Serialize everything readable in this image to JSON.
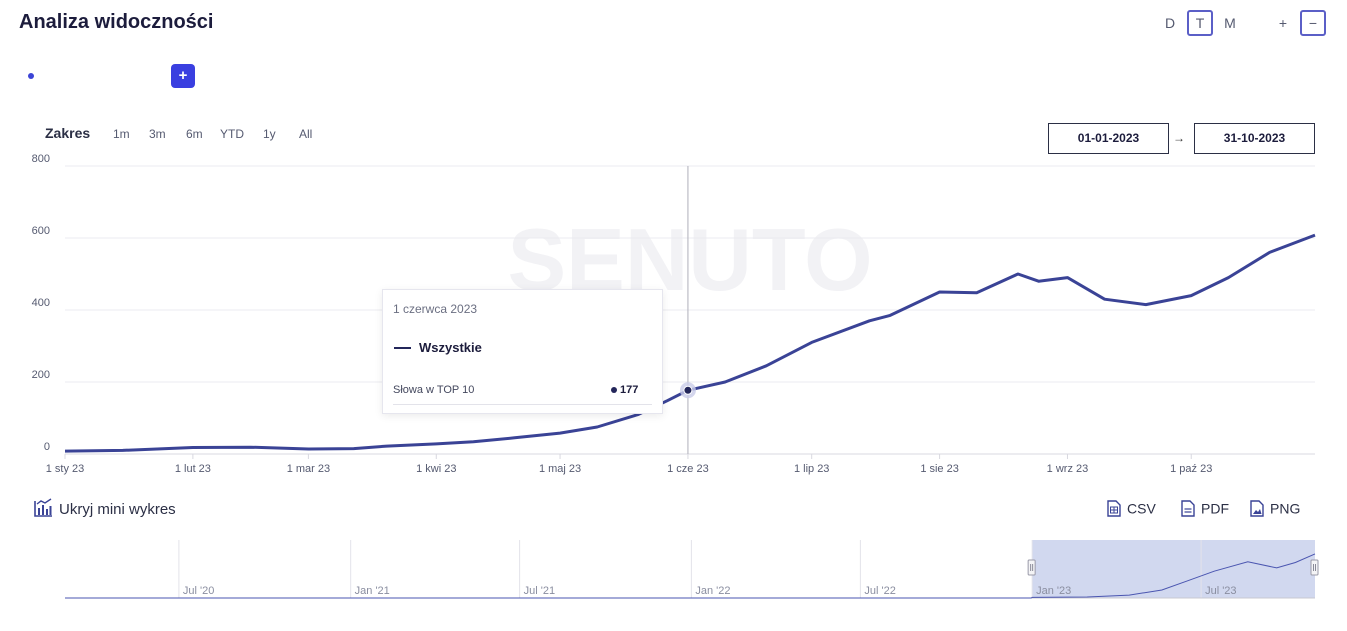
{
  "header": {
    "title": "Analiza widoczności"
  },
  "granularity": {
    "options": [
      "D",
      "T",
      "M"
    ],
    "active": "T",
    "zoom_in": "+",
    "zoom_out": "−"
  },
  "series_controls": {
    "add_label": "+"
  },
  "range": {
    "label": "Zakres",
    "options": [
      "1m",
      "3m",
      "6m",
      "YTD",
      "1y",
      "All"
    ],
    "from": "01-01-2023",
    "arrow": "→",
    "to": "31-10-2023"
  },
  "watermark": "SENUTO",
  "tooltip": {
    "date": "1 czerwca 2023",
    "series_name": "Wszystkie",
    "metric_label": "Słowa w TOP 10",
    "metric_value": "177"
  },
  "mini_chart_toggle": "Ukryj mini wykres",
  "exports": [
    "CSV",
    "PDF",
    "PNG"
  ],
  "colors": {
    "line": "#3a4396",
    "accent": "#3a3fe0",
    "navigator_fill": "#c9d1ec"
  },
  "chart_data": {
    "type": "line",
    "ylim": [
      0,
      800
    ],
    "yticks": [
      0,
      200,
      400,
      600,
      800
    ],
    "x_start": "2023-01-01",
    "x_end": "2023-10-31",
    "xtick_labels": [
      "1 sty 23",
      "1 lut 23",
      "1 mar 23",
      "1 kwi 23",
      "1 maj 23",
      "1 cze 23",
      "1 lip 23",
      "1 sie 23",
      "1 wrz 23",
      "1 paź 23"
    ],
    "xtick_dates": [
      "2023-01-01",
      "2023-02-01",
      "2023-03-01",
      "2023-04-01",
      "2023-05-01",
      "2023-06-01",
      "2023-07-01",
      "2023-08-01",
      "2023-09-01",
      "2023-10-01"
    ],
    "series": [
      {
        "points": [
          [
            "2023-01-01",
            8
          ],
          [
            "2023-01-15",
            10
          ],
          [
            "2023-02-01",
            18
          ],
          [
            "2023-02-15",
            19
          ],
          [
            "2023-03-01",
            14
          ],
          [
            "2023-03-12",
            15
          ],
          [
            "2023-03-20",
            22
          ],
          [
            "2023-04-01",
            28
          ],
          [
            "2023-04-10",
            34
          ],
          [
            "2023-04-20",
            45
          ],
          [
            "2023-05-01",
            58
          ],
          [
            "2023-05-10",
            75
          ],
          [
            "2023-05-20",
            110
          ],
          [
            "2023-05-27",
            148
          ],
          [
            "2023-06-01",
            177
          ],
          [
            "2023-06-10",
            200
          ],
          [
            "2023-06-20",
            245
          ],
          [
            "2023-07-01",
            310
          ],
          [
            "2023-07-15",
            370
          ],
          [
            "2023-07-20",
            385
          ],
          [
            "2023-08-01",
            450
          ],
          [
            "2023-08-10",
            448
          ],
          [
            "2023-08-20",
            500
          ],
          [
            "2023-08-25",
            480
          ],
          [
            "2023-09-01",
            490
          ],
          [
            "2023-09-10",
            430
          ],
          [
            "2023-09-20",
            415
          ],
          [
            "2023-10-01",
            440
          ],
          [
            "2023-10-10",
            490
          ],
          [
            "2023-10-20",
            560
          ],
          [
            "2023-10-31",
            608
          ]
        ]
      }
    ],
    "highlight": {
      "date": "2023-06-01",
      "value": 177
    },
    "navigator": {
      "labels": [
        "Jul '20",
        "Jan '21",
        "Jul '21",
        "Jan '22",
        "Jul '22",
        "Jan '23",
        "Jul '23"
      ],
      "label_dates": [
        "2020-07-01",
        "2021-01-01",
        "2021-07-01",
        "2022-01-01",
        "2022-07-01",
        "2023-01-01",
        "2023-07-01"
      ],
      "start": "2020-03-01",
      "end": "2023-10-31",
      "selection": [
        "2023-01-01",
        "2023-10-31"
      ],
      "series": [
        [
          "2020-03-01",
          0
        ],
        [
          "2022-12-31",
          0
        ],
        [
          "2023-01-01",
          8
        ],
        [
          "2023-03-01",
          14
        ],
        [
          "2023-04-15",
          40
        ],
        [
          "2023-05-20",
          110
        ],
        [
          "2023-06-15",
          230
        ],
        [
          "2023-07-15",
          370
        ],
        [
          "2023-08-20",
          500
        ],
        [
          "2023-09-20",
          415
        ],
        [
          "2023-10-10",
          490
        ],
        [
          "2023-10-31",
          608
        ]
      ]
    }
  }
}
